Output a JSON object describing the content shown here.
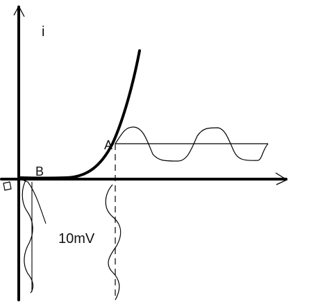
{
  "labels": {
    "current_axis": "i",
    "point_a": "A",
    "point_b": "B",
    "amplitude": "10mV"
  },
  "colors": {
    "ink": "#000000",
    "curve": "#000000",
    "background": "#ffffff"
  }
}
